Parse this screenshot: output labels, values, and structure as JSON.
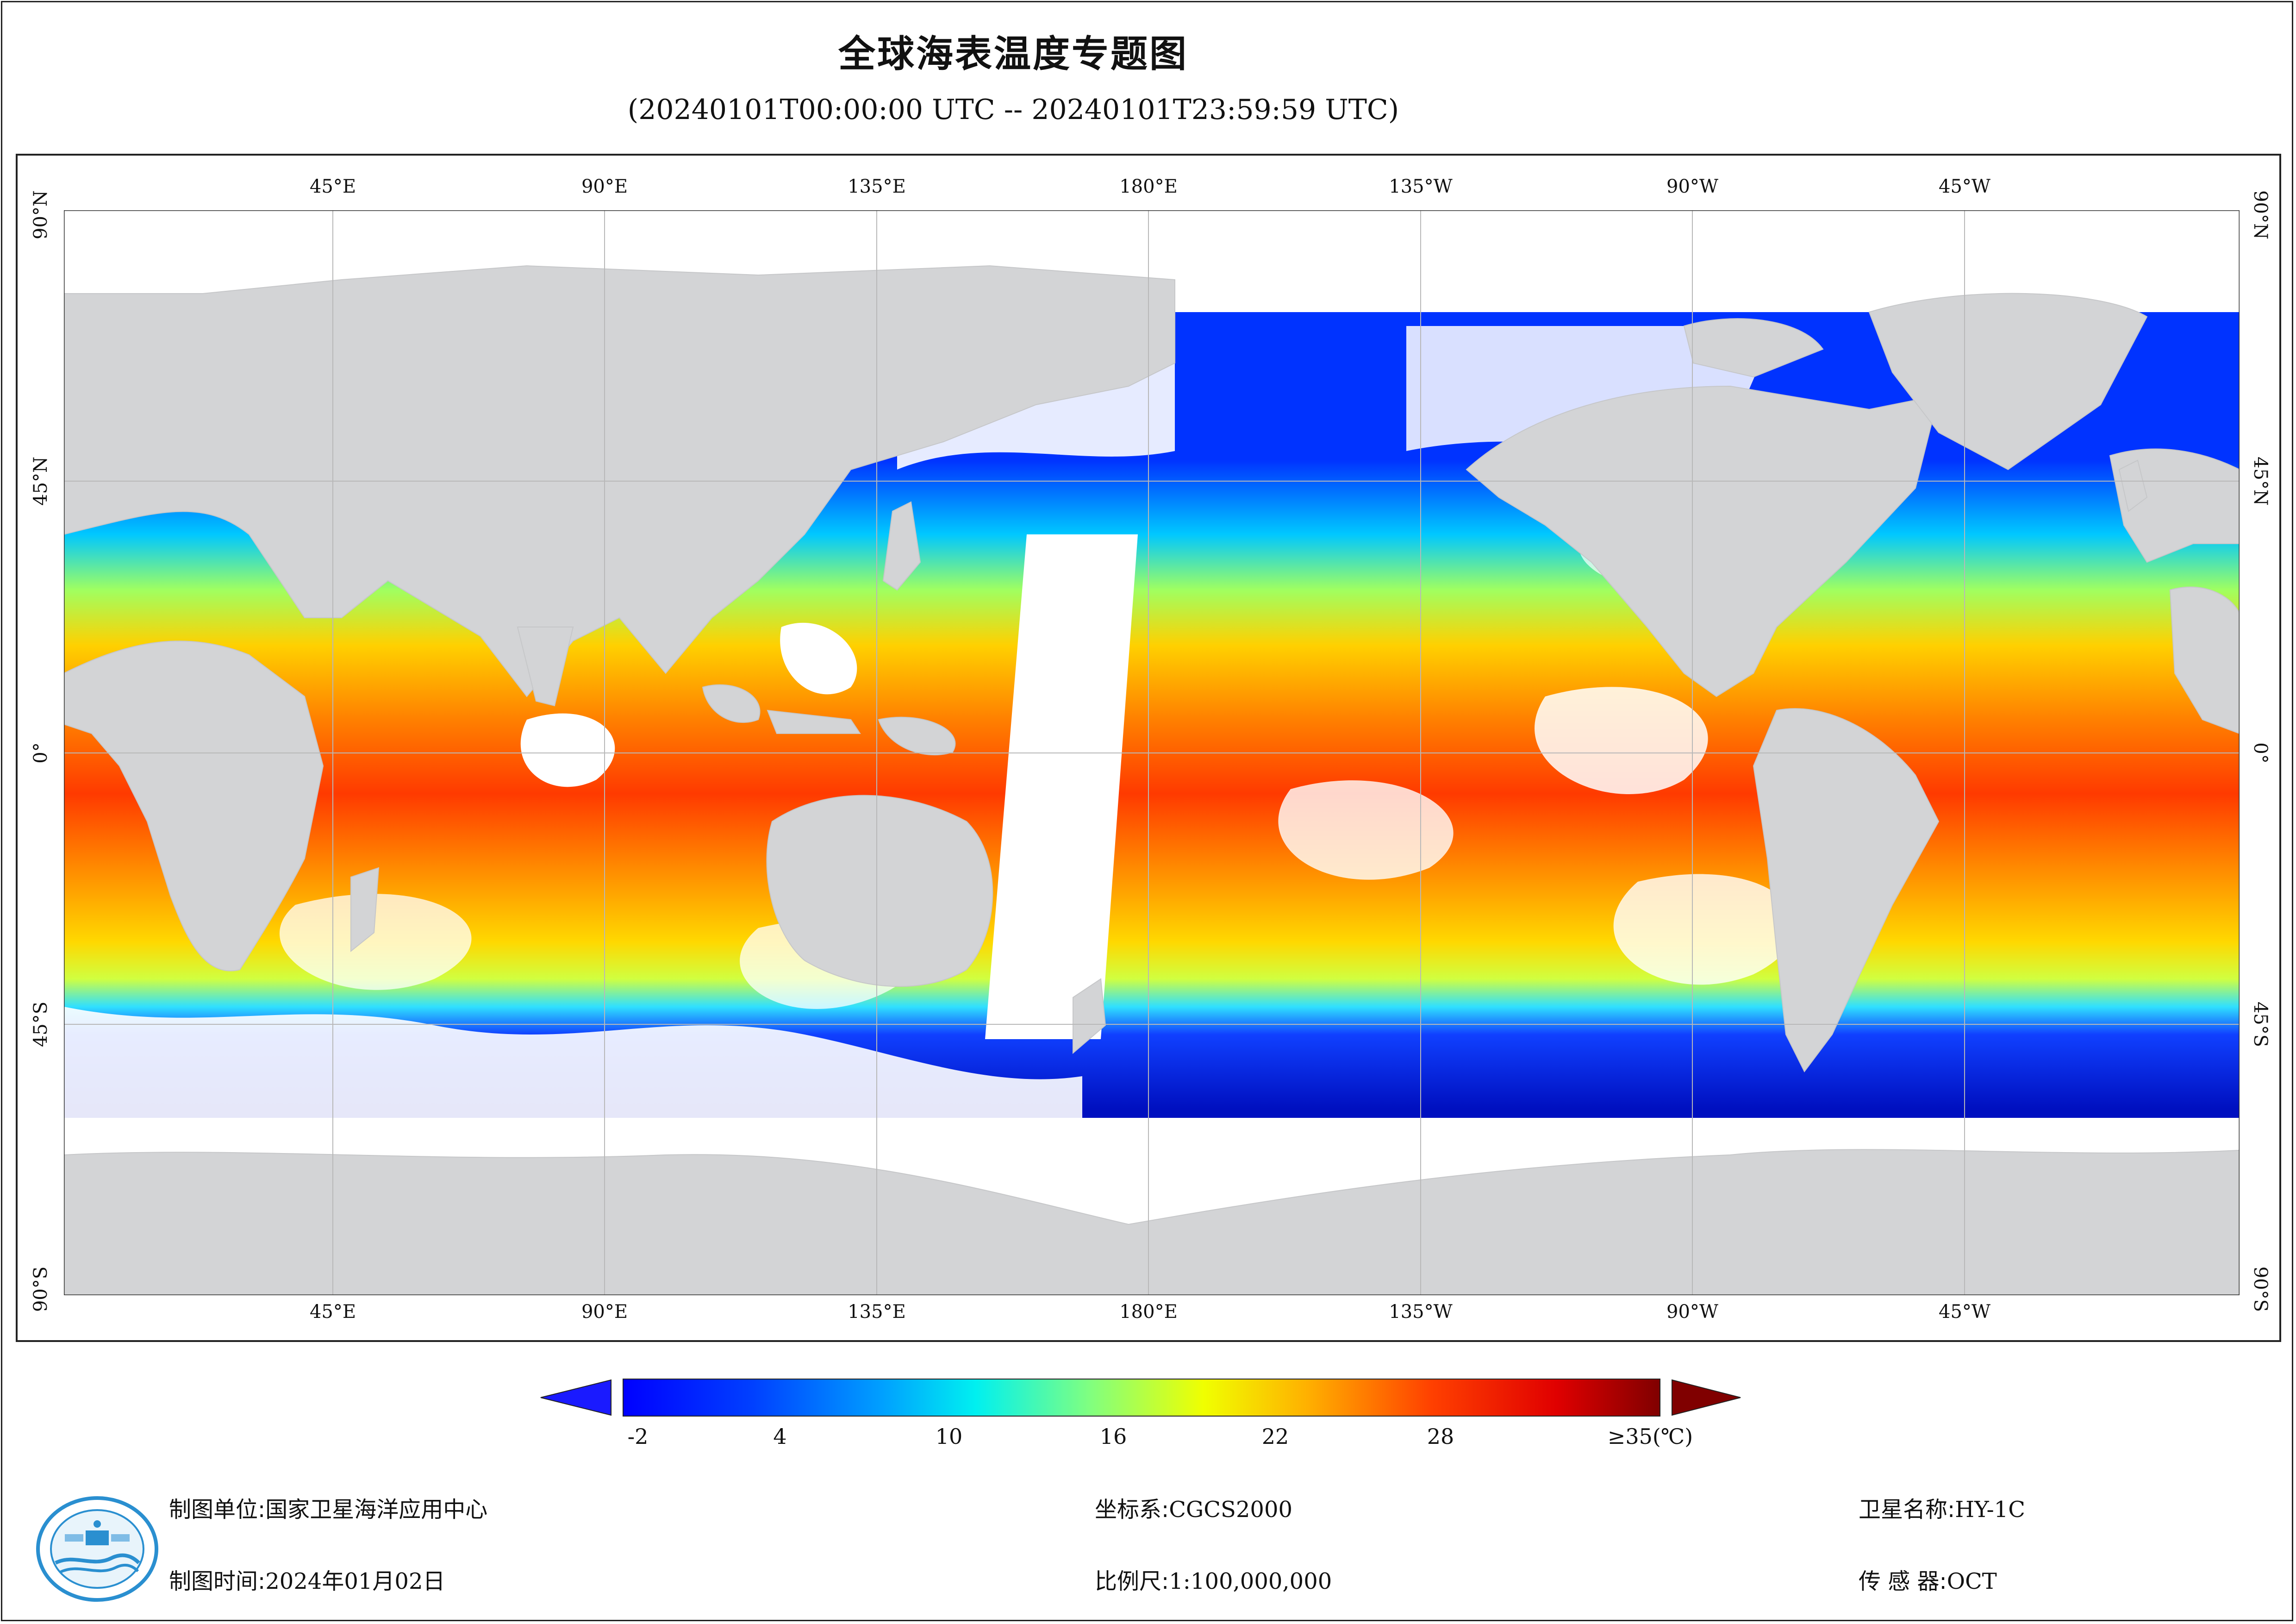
{
  "title": "全球海表温度专题图",
  "subtitle": "(20240101T00:00:00 UTC -- 20240101T23:59:59 UTC)",
  "map": {
    "lon_labels": [
      "45°E",
      "90°E",
      "135°E",
      "180°E",
      "135°W",
      "90°W",
      "45°W"
    ],
    "lat_labels": [
      "90°N",
      "45°N",
      "0°",
      "45°S",
      "90°S"
    ],
    "land_color": "#d3d4d6",
    "gridline_color": "#b8b8b8"
  },
  "colorbar": {
    "ticks": [
      "-2",
      "4",
      "10",
      "16",
      "22",
      "28",
      "≥35(℃)"
    ],
    "range": [
      -2,
      35
    ],
    "colormap": "jet",
    "under_color": "#1a1aff",
    "over_color": "#800000"
  },
  "footer": {
    "unit_label": "制图单位:",
    "unit_value": "国家卫星海洋应用中心",
    "time_label": "制图时间:",
    "time_value": "2024年01月02日",
    "crs_label": "坐标系:",
    "crs_value": "CGCS2000",
    "scale_label": "比例尺:",
    "scale_value": "1:100,000,000",
    "satellite_label": "卫星名称:",
    "satellite_value": "HY-1C",
    "sensor_label": "传 感 器:",
    "sensor_value": "OCT"
  }
}
